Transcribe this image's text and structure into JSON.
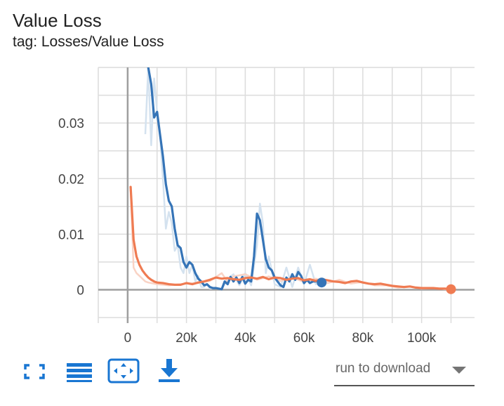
{
  "header": {
    "title": "Value Loss",
    "subtitle": "tag: Losses/Value Loss"
  },
  "toolbar": {
    "download_label": "run to download",
    "icons": [
      "fullscreen-icon",
      "list-icon",
      "fit-domain-icon",
      "download-icon"
    ],
    "icon_color": "#1976d2"
  },
  "chart_data": {
    "type": "line",
    "title": "",
    "xlabel": "",
    "ylabel": "",
    "xlim": [
      -10000,
      118000
    ],
    "ylim": [
      -0.006,
      0.04
    ],
    "x_ticks": [
      0,
      20000,
      40000,
      60000,
      80000,
      100000
    ],
    "x_tick_labels": [
      "0",
      "20k",
      "40k",
      "60k",
      "80k",
      "100k"
    ],
    "y_ticks": [
      0,
      0.01,
      0.02,
      0.03
    ],
    "y_tick_labels": [
      "0",
      "0.01",
      "0.02",
      "0.03"
    ],
    "grid": true,
    "series": [
      {
        "color": "#3574b7",
        "raw_color": "#d4e2ef",
        "smoothed": {
          "x": [
            7000,
            8000,
            9000,
            10000,
            11000,
            12000,
            13000,
            14000,
            15000,
            16000,
            17000,
            18000,
            19000,
            20000,
            21000,
            22000,
            23000,
            24000,
            25000,
            26000,
            27000,
            28000,
            29000,
            30000,
            31000,
            32000,
            33000,
            34000,
            35000,
            36000,
            37000,
            38000,
            39000,
            40000,
            41000,
            42000,
            43000,
            44000,
            45000,
            46000,
            47000,
            48000,
            49000,
            50000,
            51000,
            52000,
            53000,
            54000,
            55000,
            56000,
            57000,
            58000,
            59000,
            60000,
            61000,
            62000,
            63000,
            64000,
            65000,
            66000
          ],
          "y": [
            0.04,
            0.037,
            0.031,
            0.032,
            0.028,
            0.024,
            0.019,
            0.016,
            0.015,
            0.011,
            0.008,
            0.0075,
            0.005,
            0.004,
            0.005,
            0.0045,
            0.003,
            0.002,
            0.0015,
            0.0008,
            0.001,
            0.0005,
            0.0003,
            0.0003,
            0.0002,
            0.0001,
            0.0015,
            0.001,
            0.0023,
            0.0015,
            0.0022,
            0.0012,
            0.0023,
            0.0011,
            0.0018,
            0.0015,
            0.006,
            0.0137,
            0.0125,
            0.009,
            0.0055,
            0.004,
            0.0035,
            0.0022,
            0.0015,
            0.0008,
            0.0005,
            0.0022,
            0.0015,
            0.0028,
            0.0018,
            0.0032,
            0.0025,
            0.0012,
            0.0018,
            0.0012,
            0.0015,
            0.0015,
            0.0016,
            0.0013
          ],
          "end_marker": {
            "x": 66000,
            "y": 0.0013
          }
        },
        "raw": {
          "x": [
            6000,
            7000,
            8000,
            9000,
            10000,
            11000,
            12000,
            13000,
            14000,
            15000,
            16000,
            17000,
            18000,
            19000,
            20000,
            21000,
            22000,
            23000,
            24000,
            25000,
            26000,
            27000,
            28000,
            30000,
            32000,
            34000,
            36000,
            38000,
            40000,
            42000,
            44000,
            45000,
            46000,
            47000,
            48000,
            50000,
            52000,
            54000,
            56000,
            58000,
            60000,
            62000,
            64000,
            66000
          ],
          "y": [
            0.028,
            0.04,
            0.026,
            0.038,
            0.032,
            0.028,
            0.02,
            0.011,
            0.014,
            0.012,
            0.007,
            0.008,
            0.004,
            0.003,
            0.006,
            0.003,
            0.0045,
            0.0015,
            0.0025,
            0.0005,
            0.0005,
            0.001,
            0.0002,
            0.0003,
            0.0001,
            0.002,
            0.0028,
            0.0008,
            0.003,
            0.0008,
            0.008,
            0.0155,
            0.012,
            0.003,
            0.006,
            0.001,
            0.0005,
            0.004,
            0.0005,
            0.004,
            0.001,
            0.0045,
            0.001,
            0.0013
          ]
        }
      },
      {
        "color": "#ef7b52",
        "raw_color": "#f9d3c5",
        "smoothed": {
          "x": [
            1000,
            2000,
            3000,
            4000,
            5000,
            6000,
            7000,
            8000,
            9000,
            10000,
            12000,
            14000,
            16000,
            18000,
            20000,
            22000,
            24000,
            26000,
            28000,
            30000,
            32000,
            34000,
            36000,
            38000,
            40000,
            42000,
            44000,
            46000,
            48000,
            50000,
            52000,
            54000,
            56000,
            58000,
            60000,
            62000,
            64000,
            66000,
            68000,
            70000,
            72000,
            74000,
            76000,
            78000,
            80000,
            82000,
            84000,
            86000,
            88000,
            90000,
            92000,
            94000,
            96000,
            98000,
            100000,
            102000,
            104000,
            106000,
            108000,
            110000
          ],
          "y": [
            0.0185,
            0.009,
            0.006,
            0.0045,
            0.0035,
            0.0028,
            0.0022,
            0.0018,
            0.0015,
            0.0013,
            0.0012,
            0.001,
            0.0009,
            0.0009,
            0.0012,
            0.001,
            0.0013,
            0.0015,
            0.0018,
            0.0022,
            0.002,
            0.0021,
            0.0019,
            0.0018,
            0.0021,
            0.0022,
            0.002,
            0.0023,
            0.0019,
            0.0022,
            0.0021,
            0.0018,
            0.002,
            0.0021,
            0.0017,
            0.0019,
            0.0016,
            0.0019,
            0.0017,
            0.0015,
            0.0014,
            0.0012,
            0.0015,
            0.0016,
            0.0013,
            0.0011,
            0.001,
            0.0011,
            0.0009,
            0.0007,
            0.0006,
            0.0005,
            0.0006,
            0.0004,
            0.0003,
            0.0003,
            0.0003,
            0.0002,
            0.0002,
            0.0001
          ],
          "end_marker": {
            "x": 110000,
            "y": 0.0001
          }
        },
        "raw": {
          "x": [
            1000,
            2000,
            3000,
            4000,
            5000,
            6000,
            7000,
            8000,
            10000,
            12000,
            14000,
            16000,
            18000,
            20000,
            24000,
            28000,
            32000,
            34000,
            36000,
            40000,
            44000,
            48000,
            52000,
            56000,
            60000,
            64000,
            68000,
            72000,
            76000,
            80000,
            84000,
            88000,
            92000,
            96000,
            100000,
            104000,
            108000,
            110000
          ],
          "y": [
            0.018,
            0.004,
            0.003,
            0.0025,
            0.002,
            0.0015,
            0.0013,
            0.0012,
            0.001,
            0.0009,
            0.0008,
            0.0009,
            0.001,
            0.0011,
            0.0012,
            0.0016,
            0.003,
            0.0014,
            0.0024,
            0.0028,
            0.0018,
            0.0024,
            0.0016,
            0.0022,
            0.0014,
            0.002,
            0.0012,
            0.0018,
            0.0011,
            0.0014,
            0.0008,
            0.0008,
            0.0004,
            0.0006,
            0.0002,
            0.0003,
            0.0001,
            0.0001
          ]
        }
      }
    ]
  }
}
